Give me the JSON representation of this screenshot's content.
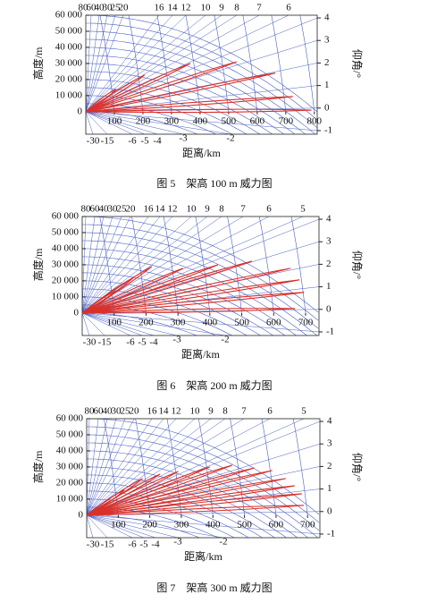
{
  "chart_data": [
    {
      "type": "lobe",
      "caption": "图 5　架高 100 m 威力图",
      "xlabel": "距离/km",
      "ylabel": "高度/m",
      "y2label": "仰角/°",
      "xlim": [
        0,
        810
      ],
      "xticks": [
        100,
        200,
        300,
        400,
        500,
        600,
        700,
        800
      ],
      "ylim": [
        -14000,
        60000
      ],
      "yticks": [
        0,
        {
          "value": 10000,
          "label": "10 000"
        },
        {
          "value": 20000,
          "label": "20 000"
        },
        {
          "value": 30000,
          "label": "30 000"
        },
        {
          "value": 40000,
          "label": "40 000"
        },
        {
          "value": 50000,
          "label": "50 000"
        },
        {
          "value": 60000,
          "label": "60 000"
        }
      ],
      "y2lim": [
        -1.16,
        4.12
      ],
      "y2ticks": [
        4,
        3,
        2,
        1,
        0,
        -1
      ],
      "top_labels": [
        80,
        60,
        40,
        30,
        25,
        20,
        16,
        14,
        12,
        10,
        9,
        8,
        7,
        6
      ],
      "bottom_labels": [
        -30,
        -15,
        -6,
        -5,
        -4,
        -3,
        -2
      ],
      "color": "#d9312b",
      "grid_color": "#4a5fc1",
      "x": [
        106,
        206,
        366,
        528,
        663,
        725,
        790
      ],
      "values": [
        13900,
        22800,
        30000,
        31000,
        24000,
        9400,
        1000
      ]
    },
    {
      "type": "lobe",
      "caption": "图 6　架高 200 m 威力图",
      "xlabel": "距离/km",
      "ylabel": "高度/m",
      "y2label": "仰角/°",
      "xlim": [
        0,
        742
      ],
      "xticks": [
        100,
        200,
        300,
        400,
        500,
        600,
        700
      ],
      "ylim": [
        -14000,
        60000
      ],
      "yticks": [
        0,
        {
          "value": 10000,
          "label": "10 000"
        },
        {
          "value": 20000,
          "label": "20 000"
        },
        {
          "value": 30000,
          "label": "30 000"
        },
        {
          "value": 40000,
          "label": "40 000"
        },
        {
          "value": 50000,
          "label": "50 000"
        },
        {
          "value": 60000,
          "label": "60 000"
        }
      ],
      "y2lim": [
        -1.16,
        4.12
      ],
      "y2ticks": [
        4,
        3,
        2,
        1,
        0,
        -1
      ],
      "top_labels": [
        80,
        60,
        40,
        30,
        25,
        20,
        16,
        14,
        12,
        10,
        9,
        8,
        7,
        6,
        5
      ],
      "bottom_labels": [
        -30,
        -15,
        -6,
        -5,
        -4,
        -3,
        -2
      ],
      "color": "#d9312b",
      "grid_color": "#4a5fc1",
      "x": [
        110,
        162,
        218,
        316,
        426,
        532,
        653,
        681,
        695,
        667
      ],
      "values": [
        14000,
        22200,
        28900,
        27800,
        30000,
        32200,
        27800,
        20600,
        12800,
        2800
      ]
    },
    {
      "type": "lobe",
      "caption": "图 7　架高 300 m 威力图",
      "xlabel": "距离/km",
      "ylabel": "高度/m",
      "y2label": "仰角/°",
      "xlim": [
        0,
        739
      ],
      "xticks": [
        100,
        200,
        300,
        400,
        500,
        600,
        700
      ],
      "ylim": [
        -14000,
        60000
      ],
      "yticks": [
        0,
        {
          "value": 10000,
          "label": "10 000"
        },
        {
          "value": 20000,
          "label": "20 000"
        },
        {
          "value": 30000,
          "label": "30 000"
        },
        {
          "value": 40000,
          "label": "40 000"
        },
        {
          "value": 50000,
          "label": "50 000"
        },
        {
          "value": 60000,
          "label": "60 000"
        }
      ],
      "y2lim": [
        -1.16,
        4.12
      ],
      "y2ticks": [
        4,
        3,
        2,
        1,
        0,
        -1
      ],
      "top_labels": [
        80,
        60,
        40,
        30,
        25,
        20,
        16,
        14,
        12,
        10,
        9,
        8,
        7,
        6,
        5
      ],
      "bottom_labels": [
        -30,
        -15,
        -6,
        -5,
        -4,
        -3,
        -2
      ],
      "color": "#d9312b",
      "grid_color": "#4a5fc1",
      "x": [
        120,
        177,
        233,
        290,
        390,
        461,
        531,
        588,
        631,
        659,
        682,
        688
      ],
      "values": [
        15600,
        22800,
        25600,
        27200,
        30000,
        31100,
        29400,
        27800,
        22800,
        18300,
        13300,
        6100
      ]
    }
  ]
}
